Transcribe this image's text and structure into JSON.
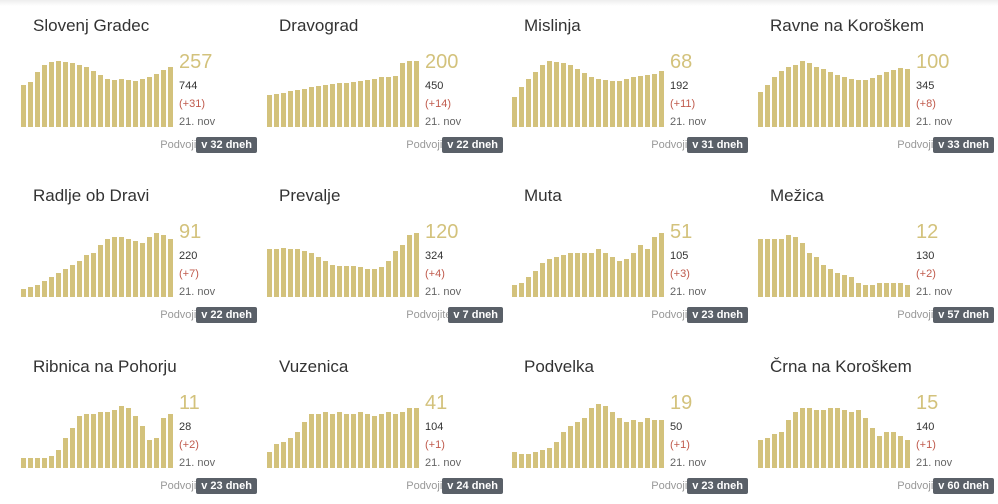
{
  "accent_color": "#d3c27c",
  "delta_color": "#c05b4d",
  "badge_color": "#5a6068",
  "cards": [
    {
      "name": "Slovenj Gradec",
      "active": "257",
      "total": "744",
      "delta": "(+31)",
      "date": "21. nov",
      "doubling_label": "Podvojitev",
      "doubling": "v 32 dneh",
      "bars": [
        42,
        45,
        55,
        62,
        65,
        66,
        65,
        64,
        62,
        60,
        56,
        52,
        48,
        47,
        48,
        47,
        46,
        48,
        50,
        53,
        57,
        60
      ]
    },
    {
      "name": "Dravograd",
      "active": "200",
      "total": "450",
      "delta": "(+14)",
      "date": "21. nov",
      "doubling_label": "Podvojitev",
      "doubling": "v 22 dneh",
      "bars": [
        32,
        33,
        34,
        36,
        37,
        38,
        40,
        41,
        42,
        43,
        44,
        44,
        45,
        46,
        47,
        48,
        50,
        50,
        51,
        64,
        66,
        66
      ]
    },
    {
      "name": "Mislinja",
      "active": "68",
      "total": "192",
      "delta": "(+11)",
      "date": "21. nov",
      "doubling_label": "Podvojitev",
      "doubling": "v 31 dneh",
      "bars": [
        30,
        40,
        48,
        55,
        62,
        66,
        65,
        64,
        62,
        58,
        54,
        50,
        48,
        47,
        46,
        46,
        48,
        50,
        51,
        52,
        53,
        56
      ]
    },
    {
      "name": "Ravne na Koroškem",
      "active": "100",
      "total": "345",
      "delta": "(+8)",
      "date": "21. nov",
      "doubling_label": "Podvojitev",
      "doubling": "v 33 dneh",
      "bars": [
        35,
        42,
        50,
        56,
        60,
        62,
        66,
        64,
        60,
        58,
        55,
        52,
        50,
        48,
        47,
        47,
        49,
        52,
        55,
        57,
        59,
        58
      ]
    },
    {
      "name": "Radlje ob Dravi",
      "active": "91",
      "total": "220",
      "delta": "(+7)",
      "date": "21. nov",
      "doubling_label": "Podvojitev",
      "doubling": "v 22 dneh",
      "bars": [
        8,
        10,
        12,
        16,
        20,
        24,
        28,
        32,
        36,
        42,
        44,
        52,
        58,
        60,
        60,
        58,
        56,
        54,
        60,
        64,
        62,
        58
      ]
    },
    {
      "name": "Prevalje",
      "active": "120",
      "total": "324",
      "delta": "(+4)",
      "date": "21. nov",
      "doubling_label": "Podvojitev",
      "doubling": "v 7 dneh",
      "bars": [
        48,
        48,
        49,
        48,
        48,
        46,
        44,
        40,
        36,
        32,
        31,
        31,
        31,
        30,
        28,
        28,
        30,
        36,
        46,
        52,
        62,
        64
      ]
    },
    {
      "name": "Muta",
      "active": "51",
      "total": "105",
      "delta": "(+3)",
      "date": "21. nov",
      "doubling_label": "Podvojitev",
      "doubling": "v 23 dneh",
      "bars": [
        12,
        14,
        20,
        26,
        34,
        38,
        40,
        42,
        44,
        44,
        44,
        44,
        48,
        44,
        40,
        36,
        38,
        44,
        52,
        48,
        60,
        64
      ]
    },
    {
      "name": "Mežica",
      "active": "12",
      "total": "130",
      "delta": "(+2)",
      "date": "21. nov",
      "doubling_label": "Podvojitev",
      "doubling": "v 57 dneh",
      "bars": [
        58,
        58,
        58,
        58,
        62,
        60,
        54,
        44,
        40,
        32,
        28,
        24,
        22,
        20,
        14,
        12,
        12,
        14,
        14,
        14,
        14,
        12
      ]
    },
    {
      "name": "Ribnica na Pohorju",
      "active": "11",
      "total": "28",
      "delta": "(+2)",
      "date": "21. nov",
      "doubling_label": "Podvojitev",
      "doubling": "v 23 dneh",
      "bars": [
        10,
        10,
        10,
        10,
        12,
        18,
        30,
        40,
        52,
        54,
        54,
        56,
        56,
        58,
        62,
        60,
        52,
        42,
        28,
        30,
        50,
        54
      ]
    },
    {
      "name": "Vuzenica",
      "active": "41",
      "total": "104",
      "delta": "(+1)",
      "date": "21. nov",
      "doubling_label": "Podvojitev",
      "doubling": "v 24 dneh",
      "bars": [
        16,
        24,
        26,
        30,
        36,
        46,
        54,
        54,
        56,
        54,
        56,
        54,
        54,
        56,
        54,
        52,
        54,
        56,
        54,
        56,
        60,
        60
      ]
    },
    {
      "name": "Podvelka",
      "active": "19",
      "total": "50",
      "delta": "(+1)",
      "date": "21. nov",
      "doubling_label": "Podvojitev",
      "doubling": "v 23 dneh",
      "bars": [
        16,
        14,
        14,
        16,
        18,
        20,
        26,
        36,
        42,
        46,
        50,
        60,
        64,
        62,
        56,
        50,
        46,
        48,
        46,
        50,
        48,
        48
      ]
    },
    {
      "name": "Črna na Koroškem",
      "active": "15",
      "total": "140",
      "delta": "(+1)",
      "date": "21. nov",
      "doubling_label": "Podvojitev",
      "doubling": "v 60 dneh",
      "bars": [
        28,
        30,
        34,
        36,
        48,
        56,
        60,
        60,
        58,
        58,
        60,
        60,
        58,
        56,
        58,
        50,
        40,
        32,
        36,
        36,
        32,
        28
      ]
    }
  ]
}
